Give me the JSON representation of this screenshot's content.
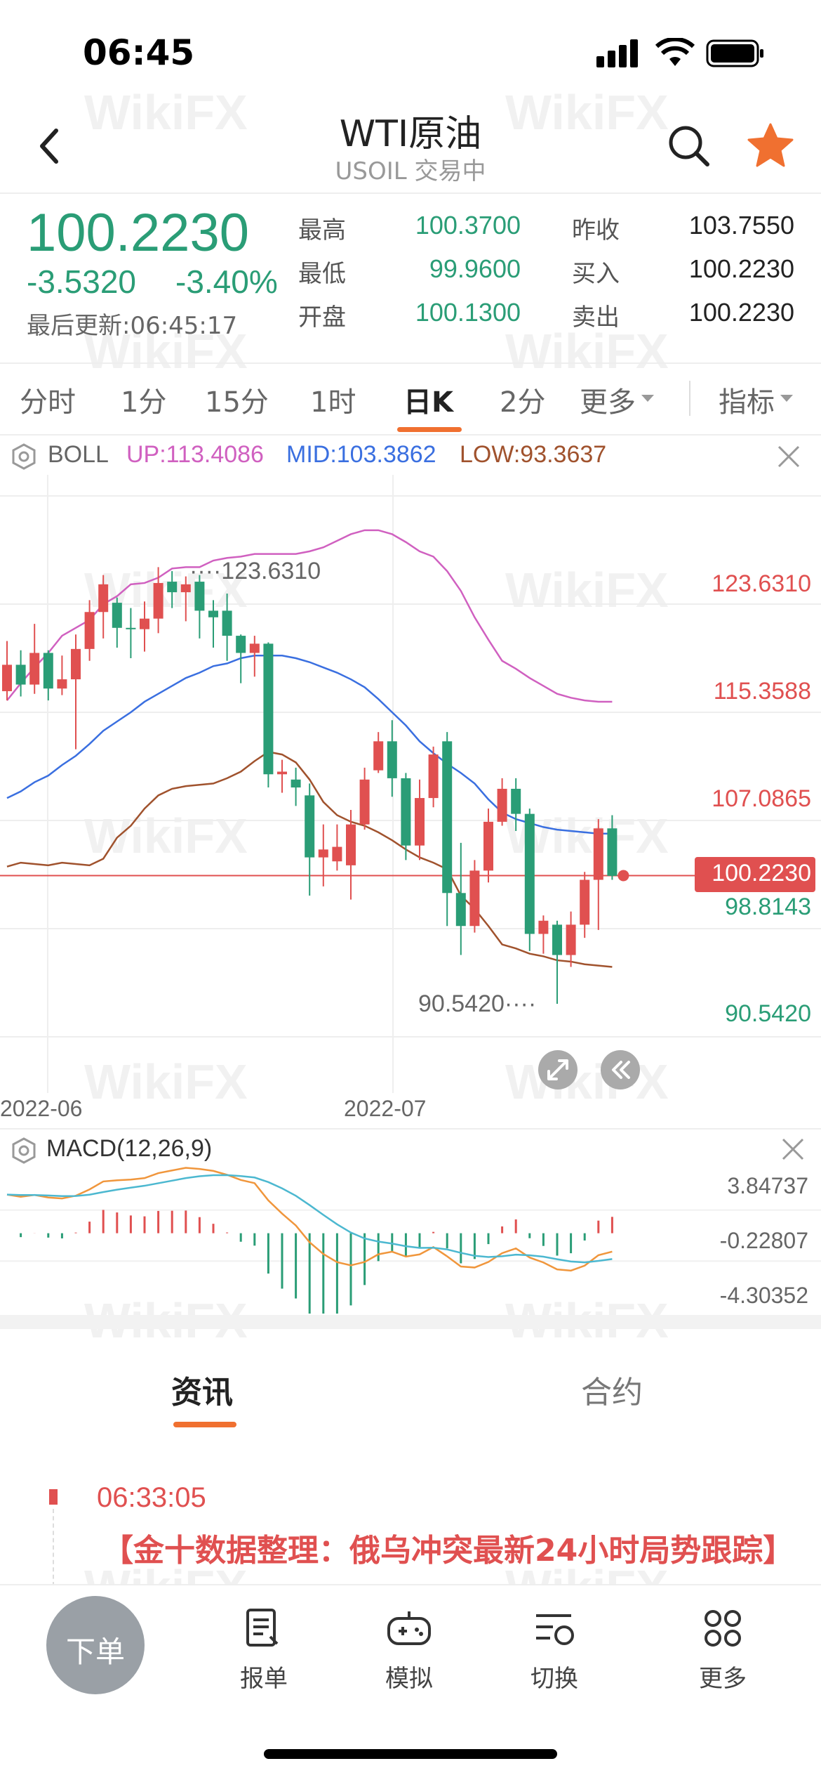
{
  "status": {
    "time": "06:45"
  },
  "header": {
    "title": "WTI原油",
    "subtitle": "USOIL 交易中"
  },
  "quote": {
    "price": "100.2230",
    "change": "-3.5320",
    "change_pct": "-3.40%",
    "updated": "最后更新:06:45:17",
    "high_label": "最高",
    "high": "100.3700",
    "low_label": "最低",
    "low": "99.9600",
    "open_label": "开盘",
    "open": "100.1300",
    "prev_close_label": "昨收",
    "prev_close": "103.7550",
    "bid_label": "买入",
    "bid": "100.2230",
    "ask_label": "卖出",
    "ask": "100.2230"
  },
  "tabs": [
    "分时",
    "1分",
    "15分",
    "1时",
    "日K",
    "2分",
    "更多",
    "指标"
  ],
  "boll": {
    "name": "BOLL",
    "up": "UP:113.4086",
    "mid": "MID:103.3862",
    "low": "LOW:93.3637",
    "up_color": "#d060c0",
    "mid_color": "#3a6fe0",
    "low_color": "#a0522d"
  },
  "chart": {
    "axis": [
      "123.6310",
      "115.3588",
      "107.0865",
      "100.2230",
      "98.8143",
      "90.5420"
    ],
    "high_marker": "123.6310",
    "low_marker": "90.5420",
    "dates": [
      "2022-06",
      "2022-07"
    ]
  },
  "macd": {
    "name": "MACD(12,26,9)",
    "axis": [
      "3.84737",
      "-0.22807",
      "-4.30352"
    ]
  },
  "news_tabs": {
    "active": "资讯",
    "other": "合约"
  },
  "news": {
    "time": "06:33:05",
    "headline": "【金十数据整理：俄乌冲突最新24小时局势跟踪】"
  },
  "bottom_nav": {
    "order": "下单",
    "items": [
      "报单",
      "模拟",
      "切换",
      "更多"
    ]
  },
  "watermark": "WikiFX",
  "colors": {
    "up": "#e05050",
    "down": "#2a9d76",
    "accent": "#f07030"
  },
  "chart_data": {
    "type": "candlestick",
    "title": "",
    "y_range": [
      88,
      129
    ],
    "x_labels": [
      "2022-06",
      "2022-07"
    ],
    "candles": [
      [
        114.2,
        116.2,
        113.5,
        118
      ],
      [
        116.2,
        114.7,
        113.8,
        117.3
      ],
      [
        114.7,
        117.1,
        114.0,
        119.3
      ],
      [
        117.1,
        114.4,
        113.5,
        117.3
      ],
      [
        114.4,
        115.1,
        113.9,
        116.9
      ],
      [
        115.1,
        117.4,
        109.8,
        118.5
      ],
      [
        117.4,
        120.2,
        116.5,
        121.1
      ],
      [
        120.2,
        122.3,
        118.2,
        123.0
      ],
      [
        120.9,
        119.0,
        117.5,
        121.3
      ],
      [
        119.0,
        118.9,
        116.7,
        120.5
      ],
      [
        118.9,
        119.7,
        117.2,
        121.0
      ],
      [
        119.7,
        122.4,
        118.6,
        123.6
      ],
      [
        122.5,
        121.7,
        120.5,
        123.3
      ],
      [
        121.7,
        122.3,
        119.5,
        122.9
      ],
      [
        122.5,
        120.3,
        118.2,
        123.0
      ],
      [
        120.3,
        119.8,
        117.5,
        121.1
      ],
      [
        120.3,
        118.4,
        116.5,
        121.6
      ],
      [
        118.4,
        117.1,
        114.8,
        118.5
      ],
      [
        117.1,
        117.8,
        115.3,
        118.4
      ],
      [
        117.8,
        107.9,
        106.9,
        117.9
      ],
      [
        107.9,
        108.1,
        106.5,
        109.0
      ],
      [
        107.5,
        106.9,
        105.5,
        108.4
      ],
      [
        106.3,
        101.6,
        98.7,
        107.2
      ],
      [
        101.6,
        102.2,
        99.4,
        104.1
      ],
      [
        101.3,
        102.4,
        100.6,
        104.1
      ],
      [
        101.0,
        104.1,
        98.4,
        105.2
      ],
      [
        104.1,
        107.5,
        103.7,
        108.4
      ],
      [
        108.2,
        110.4,
        108.0,
        111.1
      ],
      [
        110.4,
        107.6,
        106.2,
        112.0
      ],
      [
        107.6,
        102.5,
        101.4,
        108.0
      ],
      [
        102.5,
        106.1,
        101.4,
        107.5
      ],
      [
        106.1,
        109.4,
        105.4,
        110.0
      ],
      [
        110.4,
        98.9,
        96.4,
        111.1
      ],
      [
        98.9,
        96.4,
        94.2,
        102.7
      ],
      [
        96.4,
        100.6,
        95.9,
        101.4
      ],
      [
        100.6,
        104.3,
        99.7,
        105.3
      ],
      [
        104.3,
        106.8,
        104.0,
        107.6
      ],
      [
        106.8,
        104.9,
        103.6,
        107.6
      ],
      [
        104.9,
        95.8,
        94.5,
        105.3
      ],
      [
        95.8,
        96.8,
        94.3,
        97.2
      ],
      [
        96.5,
        94.2,
        90.5,
        96.8
      ],
      [
        94.2,
        96.5,
        93.3,
        97.5
      ],
      [
        96.5,
        99.9,
        95.5,
        100.5
      ],
      [
        99.9,
        103.8,
        96.1,
        104.5
      ],
      [
        103.8,
        100.2,
        99.9,
        104.8
      ]
    ],
    "boll_up": [
      113.5,
      114.8,
      116.0,
      117.1,
      118.4,
      119.0,
      119.6,
      120.8,
      121.4,
      122.3,
      122.4,
      122.8,
      123.5,
      123.6,
      123.6,
      124.1,
      124.3,
      124.4,
      124.6,
      124.6,
      124.6,
      124.6,
      124.8,
      125.1,
      125.6,
      126.1,
      126.4,
      126.4,
      126.1,
      125.5,
      124.8,
      124.4,
      123.3,
      121.8,
      119.8,
      118.1,
      116.5,
      115.9,
      115.2,
      114.6,
      114.0,
      113.7,
      113.5,
      113.4,
      113.4
    ],
    "boll_mid": [
      106.1,
      106.6,
      107.3,
      107.8,
      108.6,
      109.3,
      110.2,
      111.2,
      111.9,
      112.6,
      113.4,
      114.0,
      114.6,
      115.2,
      115.6,
      116.1,
      116.3,
      116.7,
      116.9,
      116.9,
      116.9,
      116.7,
      116.4,
      116.0,
      115.6,
      115.1,
      114.5,
      113.6,
      112.6,
      111.6,
      110.4,
      109.5,
      108.7,
      108.0,
      107.2,
      106.0,
      105.0,
      104.5,
      104.2,
      103.9,
      103.7,
      103.6,
      103.5,
      103.4,
      103.4
    ],
    "boll_low": [
      100.9,
      101.2,
      101.1,
      101.0,
      101.2,
      101.1,
      101.0,
      101.5,
      103.1,
      104.0,
      105.3,
      106.3,
      106.8,
      107.0,
      107.1,
      107.2,
      107.6,
      108.1,
      108.9,
      109.6,
      109.4,
      108.8,
      107.5,
      105.8,
      104.8,
      104.3,
      104.0,
      103.5,
      102.9,
      102.2,
      101.6,
      101.2,
      100.7,
      98.7,
      97.7,
      96.4,
      95.0,
      94.7,
      94.3,
      94.1,
      93.8,
      93.7,
      93.5,
      93.4,
      93.3
    ],
    "macd_range": [
      -5.5,
      4.5
    ]
  }
}
